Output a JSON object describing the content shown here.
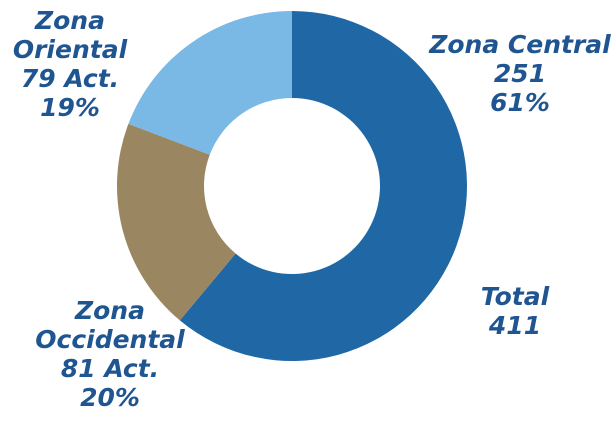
{
  "chart_data": {
    "type": "donut",
    "categories": [
      "Zona Central",
      "Zona Occidental",
      "Zona Oriental"
    ],
    "values": [
      251,
      81,
      79
    ],
    "value_labels": [
      "251",
      "81 Act.",
      "79 Act."
    ],
    "percent_labels": [
      "61%",
      "20%",
      "19%"
    ],
    "colors": [
      "#2068a5",
      "#9a8660",
      "#7ab8e6"
    ],
    "total_label": "Total",
    "total": 411
  }
}
